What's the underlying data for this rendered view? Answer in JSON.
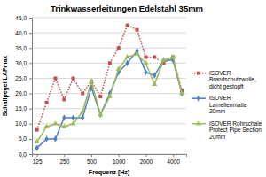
{
  "chart_data": {
    "type": "line",
    "title": "Trinkwasserleitungen Edelstahl 35mm",
    "x_label": "Frequenz [Hz]",
    "y_label": "Schallpegel LAFmax",
    "x": [
      125,
      160,
      200,
      250,
      315,
      400,
      500,
      630,
      800,
      1000,
      1250,
      1600,
      2000,
      2500,
      3150,
      4000,
      5000
    ],
    "log": "x",
    "xlim": [
      110,
      5600
    ],
    "xticks": [
      125,
      250,
      500,
      1000,
      2000,
      4000
    ],
    "ylim": [
      0,
      45
    ],
    "yticks": [
      {
        "value": 0,
        "label": "0,0"
      },
      {
        "value": 5,
        "label": "5,0"
      },
      {
        "value": 10,
        "label": "10,0"
      },
      {
        "value": 15,
        "label": "15,0"
      },
      {
        "value": 20,
        "label": "20,0"
      },
      {
        "value": 25,
        "label": "25,0"
      },
      {
        "value": 30,
        "label": "30,0"
      },
      {
        "value": 35,
        "label": "35,0"
      },
      {
        "value": 40,
        "label": "40,0"
      },
      {
        "value": 45,
        "label": "45,0"
      }
    ],
    "grid": true,
    "legend": "right",
    "series": [
      {
        "name": "ISOVER Brandschutzwolle, dicht gestopft",
        "color": "#c0504d",
        "marker": "square",
        "line_style": "dotted",
        "values": [
          8,
          17,
          25,
          18,
          25,
          20,
          24,
          19,
          30,
          35,
          42.5,
          41,
          32,
          32,
          30,
          32,
          21
        ]
      },
      {
        "name": "ISOVER Lamellenmatte 20mm",
        "color": "#4f81bd",
        "marker": "diamond",
        "line_style": "solid",
        "values": [
          2,
          5,
          5,
          12,
          12,
          12,
          22,
          13,
          20,
          27,
          30,
          34,
          27,
          26,
          31,
          31,
          20
        ]
      },
      {
        "name": "ISOVER Rohrschale Protect Pipe Section 20mm",
        "color": "#9bbb59",
        "marker": "triangle",
        "line_style": "solid",
        "values": [
          4,
          9,
          10,
          9,
          10,
          14,
          24,
          13,
          19,
          28,
          32,
          33,
          30,
          23,
          31,
          32,
          20
        ]
      }
    ]
  }
}
